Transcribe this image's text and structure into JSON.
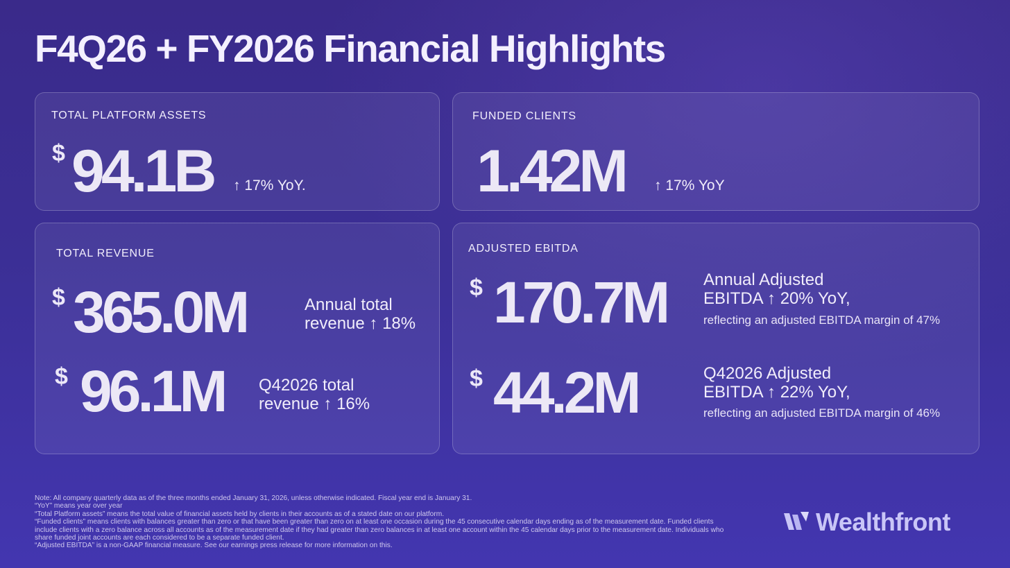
{
  "header": {
    "title": "F4Q26 + FY2026 Financial Highlights"
  },
  "cards": {
    "platform_assets": {
      "label": "TOTAL PLATFORM ASSETS",
      "currency": "$",
      "value": "94.1B",
      "delta": "↑ 17% YoY."
    },
    "funded_clients": {
      "label": "FUNDED CLIENTS",
      "value": "1.42M",
      "delta": "↑ 17% YoY"
    },
    "total_revenue": {
      "label": "TOTAL REVENUE",
      "annual": {
        "currency": "$",
        "value": "365.0M",
        "desc_line1": "Annual total",
        "desc_line2": "revenue ↑ 18%"
      },
      "quarter": {
        "currency": "$",
        "value": "96.1M",
        "desc_line1": "Q42026 total",
        "desc_line2": "revenue ↑ 16%"
      }
    },
    "adjusted_ebitda": {
      "label": "ADJUSTED EBITDA",
      "annual": {
        "currency": "$",
        "value": "170.7M",
        "desc_line1": "Annual Adjusted",
        "desc_line2": "EBITDA ↑ 20% YoY,",
        "desc_sub": "reflecting an adjusted EBITDA margin of 47%"
      },
      "quarter": {
        "currency": "$",
        "value": "44.2M",
        "desc_line1": "Q42026 Adjusted",
        "desc_line2": "EBITDA ↑ 22% YoY,",
        "desc_sub": "reflecting an adjusted EBITDA margin of 46%"
      }
    }
  },
  "footnotes": [
    "Note: All company quarterly data as of the three months ended January 31, 2026, unless otherwise indicated. Fiscal year end is January 31.",
    "“YoY” means year over year",
    "“Total Platform assets” means the total value of financial assets held by clients in their accounts as of a stated date on our platform.",
    "“Funded clients” means clients with balances greater than zero or that have been greater than zero on at least one occasion during the 45 consecutive calendar days ending as of the measurement date. Funded clients include clients with a zero balance across all accounts as of the measurement date if they had greater than zero balances in at least one account within the 45 calendar days prior to the measurement date. Individuals who share funded joint accounts are each considered to be a separate funded client.",
    "“Adjusted EBITDA” is a non-GAAP financial measure. See our earnings press release for more information on this."
  ],
  "brand": {
    "name": "Wealthfront",
    "logo_icon": "wealthfront-logo-icon",
    "color": "#c9c6f7"
  }
}
